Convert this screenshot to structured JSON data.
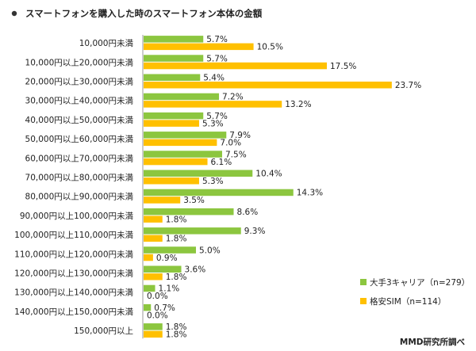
{
  "title": "スマートフォンを購入した時のスマートフォン本体の金額",
  "source": "MMD研究所調べ",
  "colors": {
    "green": "#8cc63f",
    "yellow": "#ffc000",
    "bullet": "#333333",
    "axis": "#999999"
  },
  "chart_data": {
    "type": "bar",
    "orientation": "horizontal",
    "title": "スマートフォンを購入した時のスマートフォン本体の金額",
    "xlim": [
      0,
      25
    ],
    "grid": false,
    "legend_position": "right",
    "categories": [
      "10,000円未満",
      "10,000円以上20,000円未満",
      "20,000円以上30,000円未満",
      "30,000円以上40,000円未満",
      "40,000円以上50,000円未満",
      "50,000円以上60,000円未満",
      "60,000円以上70,000円未満",
      "70,000円以上80,000円未満",
      "80,000円以上90,000円未満",
      "90,000円以上100,000円未満",
      "100,000円以上110,000円未満",
      "110,000円以上120,000円未満",
      "120,000円以上130,000円未満",
      "130,000円以上140,000円未満",
      "140,000円以上150,000円未満",
      "150,000円以上"
    ],
    "series": [
      {
        "name": "大手3キャリア（n=279）",
        "color": "#8cc63f",
        "values": [
          5.7,
          5.7,
          5.4,
          7.2,
          5.7,
          7.9,
          7.5,
          10.4,
          14.3,
          8.6,
          9.3,
          5.0,
          3.6,
          1.1,
          0.7,
          1.8
        ],
        "labels": [
          "5.7%",
          "5.7%",
          "5.4%",
          "7.2%",
          "5.7%",
          "7.9%",
          "7.5%",
          "10.4%",
          "14.3%",
          "8.6%",
          "9.3%",
          "5.0%",
          "3.6%",
          "1.1%",
          "0.7%",
          "1.8%"
        ]
      },
      {
        "name": "格安SIM（n=114）",
        "color": "#ffc000",
        "values": [
          10.5,
          17.5,
          23.7,
          13.2,
          5.3,
          7.0,
          6.1,
          5.3,
          3.5,
          1.8,
          1.8,
          0.9,
          1.8,
          0.0,
          0.0,
          1.8
        ],
        "labels": [
          "10.5%",
          "17.5%",
          "23.7%",
          "13.2%",
          "5.3%",
          "7.0%",
          "6.1%",
          "5.3%",
          "3.5%",
          "1.8%",
          "1.8%",
          "0.9%",
          "1.8%",
          "0.0%",
          "0.0%",
          "1.8%"
        ]
      }
    ]
  }
}
